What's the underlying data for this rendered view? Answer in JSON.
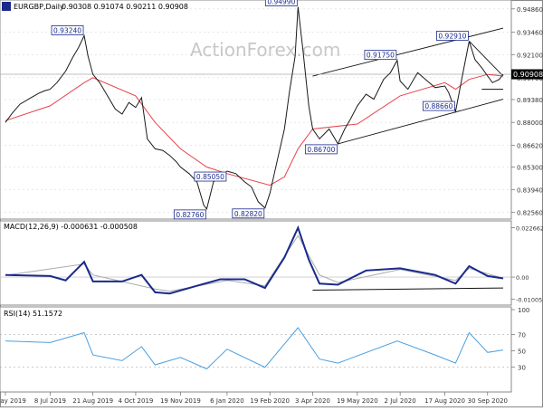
{
  "header": {
    "symbol": "EURGBP,Daily",
    "ohlc": "0.90308 0.91074 0.90211 0.90908"
  },
  "watermark": "ActionForex.com",
  "colors": {
    "price": "#1a1a1a",
    "ema": "#e8424b",
    "label_border": "#1a2a8c",
    "label_text": "#1a2a8c",
    "macd": "#1a2a8c",
    "signal": "#aaaaaa",
    "rsi": "#4a9fe0",
    "channel": "#111111",
    "grid": "#d0d0d0",
    "current_label_bg": "#000000"
  },
  "chart_data": [
    {
      "type": "line",
      "title": "EURGBP,Daily",
      "ylim": [
        0.8237,
        0.9507
      ],
      "yticks": [
        "0.94860",
        "0.93460",
        "0.92100",
        "0.90700",
        "0.89380",
        "0.88000",
        "0.86620",
        "0.85300",
        "0.83940",
        "0.82560"
      ],
      "xticks": [
        "23 May 2019",
        "8 Jul 2019",
        "21 Aug 2019",
        "4 Oct 2019",
        "19 Nov 2019",
        "6 Jan 2020",
        "19 Feb 2020",
        "3 Apr 2020",
        "19 May 2020",
        "2 Jul 2020",
        "17 Aug 2020",
        "30 Sep 2020"
      ],
      "current_value": "0.90908",
      "series": [
        {
          "kind": "close",
          "values": [
            {
              "x": "23 May 2019",
              "y": 0.88
            },
            {
              "x": "30 May 2019",
              "y": 0.8855
            },
            {
              "x": "7 Jun 2019",
              "y": 0.891
            },
            {
              "x": "17 Jun 2019",
              "y": 0.8945
            },
            {
              "x": "26 Jun 2019",
              "y": 0.8975
            },
            {
              "x": "2 Jul 2019",
              "y": 0.899
            },
            {
              "x": "8 Jul 2019",
              "y": 0.9
            },
            {
              "x": "15 Jul 2019",
              "y": 0.904
            },
            {
              "x": "24 Jul 2019",
              "y": 0.911
            },
            {
              "x": "31 Jul 2019",
              "y": 0.919
            },
            {
              "x": "6 Aug 2019",
              "y": 0.925
            },
            {
              "x": "12 Aug 2019",
              "y": 0.9324
            },
            {
              "x": "16 Aug 2019",
              "y": 0.92
            },
            {
              "x": "21 Aug 2019",
              "y": 0.909
            },
            {
              "x": "28 Aug 2019",
              "y": 0.904
            },
            {
              "x": "5 Sep 2019",
              "y": 0.896
            },
            {
              "x": "13 Sep 2019",
              "y": 0.888
            },
            {
              "x": "20 Sep 2019",
              "y": 0.885
            },
            {
              "x": "27 Sep 2019",
              "y": 0.892
            },
            {
              "x": "4 Oct 2019",
              "y": 0.889
            },
            {
              "x": "10 Oct 2019",
              "y": 0.895
            },
            {
              "x": "16 Oct 2019",
              "y": 0.87
            },
            {
              "x": "24 Oct 2019",
              "y": 0.864
            },
            {
              "x": "1 Nov 2019",
              "y": 0.863
            },
            {
              "x": "8 Nov 2019",
              "y": 0.86
            },
            {
              "x": "15 Nov 2019",
              "y": 0.856
            },
            {
              "x": "19 Nov 2019",
              "y": 0.853
            },
            {
              "x": "28 Nov 2019",
              "y": 0.849
            },
            {
              "x": "6 Dec 2019",
              "y": 0.844
            },
            {
              "x": "13 Dec 2019",
              "y": 0.83
            },
            {
              "x": "16 Dec 2019",
              "y": 0.8276
            },
            {
              "x": "23 Dec 2019",
              "y": 0.844
            },
            {
              "x": "30 Dec 2019",
              "y": 0.847
            },
            {
              "x": "6 Jan 2020",
              "y": 0.8505
            },
            {
              "x": "15 Jan 2020",
              "y": 0.849
            },
            {
              "x": "24 Jan 2020",
              "y": 0.844
            },
            {
              "x": "31 Jan 2020",
              "y": 0.841
            },
            {
              "x": "7 Feb 2020",
              "y": 0.832
            },
            {
              "x": "14 Feb 2020",
              "y": 0.8282
            },
            {
              "x": "19 Feb 2020",
              "y": 0.837
            },
            {
              "x": "27 Feb 2020",
              "y": 0.858
            },
            {
              "x": "5 Mar 2020",
              "y": 0.876
            },
            {
              "x": "10 Mar 2020",
              "y": 0.898
            },
            {
              "x": "16 Mar 2020",
              "y": 0.92
            },
            {
              "x": "19 Mar 2020",
              "y": 0.9499
            },
            {
              "x": "24 Mar 2020",
              "y": 0.924
            },
            {
              "x": "30 Mar 2020",
              "y": 0.89
            },
            {
              "x": "3 Apr 2020",
              "y": 0.876
            },
            {
              "x": "10 Apr 2020",
              "y": 0.87
            },
            {
              "x": "20 Apr 2020",
              "y": 0.876
            },
            {
              "x": "29 Apr 2020",
              "y": 0.867
            },
            {
              "x": "6 May 2020",
              "y": 0.876
            },
            {
              "x": "12 May 2020",
              "y": 0.882
            },
            {
              "x": "19 May 2020",
              "y": 0.89
            },
            {
              "x": "28 May 2020",
              "y": 0.897
            },
            {
              "x": "5 Jun 2020",
              "y": 0.894
            },
            {
              "x": "15 Jun 2020",
              "y": 0.906
            },
            {
              "x": "22 Jun 2020",
              "y": 0.91
            },
            {
              "x": "29 Jun 2020",
              "y": 0.9175
            },
            {
              "x": "2 Jul 2020",
              "y": 0.905
            },
            {
              "x": "10 Jul 2020",
              "y": 0.9
            },
            {
              "x": "20 Jul 2020",
              "y": 0.91
            },
            {
              "x": "30 Jul 2020",
              "y": 0.905
            },
            {
              "x": "7 Aug 2020",
              "y": 0.901
            },
            {
              "x": "17 Aug 2020",
              "y": 0.902
            },
            {
              "x": "21 Aug 2020",
              "y": 0.898
            },
            {
              "x": "28 Aug 2020",
              "y": 0.8866
            },
            {
              "x": "3 Sep 2020",
              "y": 0.905
            },
            {
              "x": "11 Sep 2020",
              "y": 0.9291
            },
            {
              "x": "17 Sep 2020",
              "y": 0.918
            },
            {
              "x": "24 Sep 2020",
              "y": 0.913
            },
            {
              "x": "30 Sep 2020",
              "y": 0.908
            },
            {
              "x": "5 Oct 2020",
              "y": 0.904
            },
            {
              "x": "12 Oct 2020",
              "y": 0.906
            },
            {
              "x": "16 Oct 2020",
              "y": 0.9091
            }
          ]
        },
        {
          "kind": "moving-average",
          "values": [
            {
              "x": "23 May 2019",
              "y": 0.881
            },
            {
              "x": "8 Jul 2019",
              "y": 0.89
            },
            {
              "x": "12 Aug 2019",
              "y": 0.904
            },
            {
              "x": "21 Aug 2019",
              "y": 0.907
            },
            {
              "x": "4 Oct 2019",
              "y": 0.896
            },
            {
              "x": "24 Oct 2019",
              "y": 0.88
            },
            {
              "x": "19 Nov 2019",
              "y": 0.864
            },
            {
              "x": "16 Dec 2019",
              "y": 0.853
            },
            {
              "x": "6 Jan 2020",
              "y": 0.849
            },
            {
              "x": "19 Feb 2020",
              "y": 0.842
            },
            {
              "x": "5 Mar 2020",
              "y": 0.847
            },
            {
              "x": "19 Mar 2020",
              "y": 0.864
            },
            {
              "x": "3 Apr 2020",
              "y": 0.876
            },
            {
              "x": "19 May 2020",
              "y": 0.879
            },
            {
              "x": "2 Jul 2020",
              "y": 0.896
            },
            {
              "x": "17 Aug 2020",
              "y": 0.904
            },
            {
              "x": "28 Aug 2020",
              "y": 0.9
            },
            {
              "x": "11 Sep 2020",
              "y": 0.906
            },
            {
              "x": "30 Sep 2020",
              "y": 0.909
            },
            {
              "x": "16 Oct 2020",
              "y": 0.908
            }
          ]
        }
      ],
      "price_labels": [
        {
          "x": "12 Aug 2019",
          "y": 0.9324,
          "text": "0.93240"
        },
        {
          "x": "19 Mar 2020",
          "y": 0.9499,
          "text": "0.94990"
        },
        {
          "x": "11 Sep 2020",
          "y": 0.9291,
          "text": "0.92910"
        },
        {
          "x": "29 Jun 2020",
          "y": 0.9175,
          "text": "0.91750"
        },
        {
          "x": "28 Aug 2020",
          "y": 0.8866,
          "text": "0.88660"
        },
        {
          "x": "29 Apr 2020",
          "y": 0.867,
          "text": "0.86700"
        },
        {
          "x": "6 Jan 2020",
          "y": 0.8505,
          "text": "0.85050"
        },
        {
          "x": "16 Dec 2019",
          "y": 0.8276,
          "text": "0.82760"
        },
        {
          "x": "14 Feb 2020",
          "y": 0.8282,
          "text": "0.82820"
        }
      ],
      "trendlines": [
        {
          "from": {
            "x": "3 Apr 2020",
            "y": 0.908
          },
          "to": {
            "x": "16 Oct 2020",
            "y": 0.937
          }
        },
        {
          "from": {
            "x": "29 Apr 2020",
            "y": 0.867
          },
          "to": {
            "x": "16 Oct 2020",
            "y": 0.894
          }
        },
        {
          "from": {
            "x": "11 Sep 2020",
            "y": 0.9291
          },
          "to": {
            "x": "16 Oct 2020",
            "y": 0.908
          }
        },
        {
          "from": {
            "x": "24 Sep 2020",
            "y": 0.9
          },
          "to": {
            "x": "16 Oct 2020",
            "y": 0.9
          }
        }
      ],
      "horizontal_line": 0.90908
    },
    {
      "type": "line",
      "title": "MACD(12,26,9) -0.000631 -0.000508",
      "ylim": [
        -0.012,
        0.0245
      ],
      "yticks": [
        "0.022662",
        "0.00",
        "-0.010052"
      ],
      "series": [
        {
          "kind": "macd",
          "values": [
            {
              "x": "23 May 2019",
              "y": 0.001
            },
            {
              "x": "8 Jul 2019",
              "y": 0.0005
            },
            {
              "x": "24 Jul 2019",
              "y": -0.0015
            },
            {
              "x": "12 Aug 2019",
              "y": 0.007
            },
            {
              "x": "21 Aug 2019",
              "y": -0.002
            },
            {
              "x": "20 Sep 2019",
              "y": -0.002
            },
            {
              "x": "10 Oct 2019",
              "y": 0.001
            },
            {
              "x": "24 Oct 2019",
              "y": -0.007
            },
            {
              "x": "8 Nov 2019",
              "y": -0.0075
            },
            {
              "x": "6 Dec 2019",
              "y": -0.004
            },
            {
              "x": "30 Dec 2019",
              "y": -0.001
            },
            {
              "x": "24 Jan 2020",
              "y": -0.001
            },
            {
              "x": "14 Feb 2020",
              "y": -0.005
            },
            {
              "x": "5 Mar 2020",
              "y": 0.009
            },
            {
              "x": "19 Mar 2020",
              "y": 0.0226
            },
            {
              "x": "30 Mar 2020",
              "y": 0.008
            },
            {
              "x": "10 Apr 2020",
              "y": -0.003
            },
            {
              "x": "29 Apr 2020",
              "y": -0.0035
            },
            {
              "x": "28 May 2020",
              "y": 0.003
            },
            {
              "x": "2 Jul 2020",
              "y": 0.004
            },
            {
              "x": "7 Aug 2020",
              "y": 0.001
            },
            {
              "x": "28 Aug 2020",
              "y": -0.003
            },
            {
              "x": "11 Sep 2020",
              "y": 0.005
            },
            {
              "x": "30 Sep 2020",
              "y": 0.0005
            },
            {
              "x": "16 Oct 2020",
              "y": -0.0006
            }
          ]
        },
        {
          "kind": "signal",
          "values": [
            {
              "x": "23 May 2019",
              "y": 0.0008
            },
            {
              "x": "12 Aug 2019",
              "y": 0.006
            },
            {
              "x": "21 Aug 2019",
              "y": 0.001
            },
            {
              "x": "24 Oct 2019",
              "y": -0.0055
            },
            {
              "x": "8 Nov 2019",
              "y": -0.0065
            },
            {
              "x": "6 Jan 2020",
              "y": -0.0015
            },
            {
              "x": "14 Feb 2020",
              "y": -0.004
            },
            {
              "x": "19 Mar 2020",
              "y": 0.019
            },
            {
              "x": "10 Apr 2020",
              "y": 0.001
            },
            {
              "x": "29 Apr 2020",
              "y": -0.0025
            },
            {
              "x": "2 Jul 2020",
              "y": 0.0035
            },
            {
              "x": "28 Aug 2020",
              "y": -0.0015
            },
            {
              "x": "11 Sep 2020",
              "y": 0.004
            },
            {
              "x": "16 Oct 2020",
              "y": -0.0005
            }
          ]
        }
      ],
      "trendline": {
        "from": {
          "x": "3 Apr 2020",
          "y": -0.006
        },
        "to": {
          "x": "16 Oct 2020",
          "y": -0.005
        }
      },
      "zero_line": 0.0
    },
    {
      "type": "line",
      "title": "RSI(14) 51.1572",
      "ylim": [
        0,
        100
      ],
      "yticks": [
        "100",
        "70",
        "50",
        "30",
        "0"
      ],
      "series": [
        {
          "kind": "rsi",
          "values": [
            {
              "x": "23 May 2019",
              "y": 62
            },
            {
              "x": "8 Jul 2019",
              "y": 60
            },
            {
              "x": "12 Aug 2019",
              "y": 72
            },
            {
              "x": "21 Aug 2019",
              "y": 45
            },
            {
              "x": "20 Sep 2019",
              "y": 38
            },
            {
              "x": "10 Oct 2019",
              "y": 55
            },
            {
              "x": "24 Oct 2019",
              "y": 33
            },
            {
              "x": "19 Nov 2019",
              "y": 42
            },
            {
              "x": "16 Dec 2019",
              "y": 28
            },
            {
              "x": "6 Jan 2020",
              "y": 52
            },
            {
              "x": "14 Feb 2020",
              "y": 30
            },
            {
              "x": "19 Mar 2020",
              "y": 78
            },
            {
              "x": "10 Apr 2020",
              "y": 40
            },
            {
              "x": "29 Apr 2020",
              "y": 35
            },
            {
              "x": "29 Jun 2020",
              "y": 62
            },
            {
              "x": "7 Aug 2020",
              "y": 45
            },
            {
              "x": "28 Aug 2020",
              "y": 35
            },
            {
              "x": "11 Sep 2020",
              "y": 72
            },
            {
              "x": "30 Sep 2020",
              "y": 48
            },
            {
              "x": "16 Oct 2020",
              "y": 51
            }
          ]
        }
      ]
    }
  ]
}
